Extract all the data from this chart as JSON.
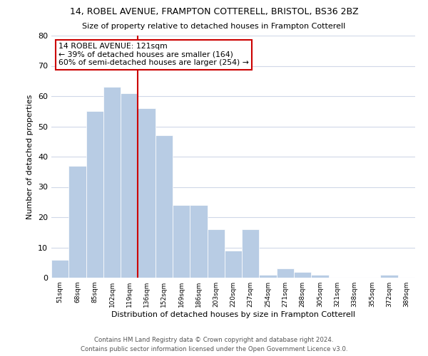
{
  "title_line1": "14, ROBEL AVENUE, FRAMPTON COTTERELL, BRISTOL, BS36 2BZ",
  "title_line2": "Size of property relative to detached houses in Frampton Cotterell",
  "xlabel": "Distribution of detached houses by size in Frampton Cotterell",
  "ylabel": "Number of detached properties",
  "bin_labels": [
    "51sqm",
    "68sqm",
    "85sqm",
    "102sqm",
    "119sqm",
    "136sqm",
    "152sqm",
    "169sqm",
    "186sqm",
    "203sqm",
    "220sqm",
    "237sqm",
    "254sqm",
    "271sqm",
    "288sqm",
    "305sqm",
    "321sqm",
    "338sqm",
    "355sqm",
    "372sqm",
    "389sqm"
  ],
  "bar_values": [
    6,
    37,
    55,
    63,
    61,
    56,
    47,
    24,
    24,
    16,
    9,
    16,
    1,
    3,
    2,
    1,
    0,
    0,
    0,
    1,
    0
  ],
  "bar_color": "#b8cce4",
  "bar_edge_color": "#ffffff",
  "property_line_label": "14 ROBEL AVENUE: 121sqm",
  "annotation_line2": "← 39% of detached houses are smaller (164)",
  "annotation_line3": "60% of semi-detached houses are larger (254) →",
  "annotation_box_color": "#ffffff",
  "annotation_box_edge_color": "#cc0000",
  "vline_color": "#cc0000",
  "ylim": [
    0,
    80
  ],
  "yticks": [
    0,
    10,
    20,
    30,
    40,
    50,
    60,
    70,
    80
  ],
  "background_color": "#ffffff",
  "grid_color": "#d0d8e8",
  "footer_line1": "Contains HM Land Registry data © Crown copyright and database right 2024.",
  "footer_line2": "Contains public sector information licensed under the Open Government Licence v3.0."
}
